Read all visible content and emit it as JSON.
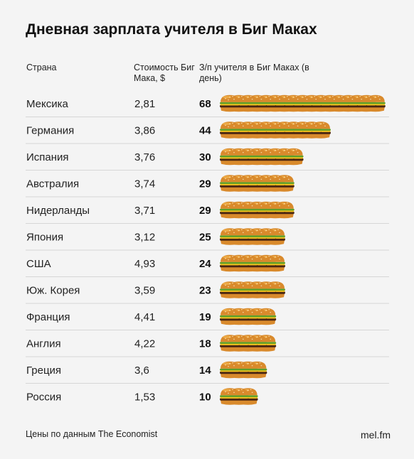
{
  "title": "Дневная зарплата учителя в Биг Маках",
  "headers": {
    "country": "Страна",
    "cost": "Стоимость Биг Мака, $",
    "salary": "З/п учителя в Биг Маках (в день)"
  },
  "footer": {
    "source": "Цены по данным The Economist",
    "brand": "mel.fm"
  },
  "chart_data": {
    "type": "table",
    "columns": [
      "Страна",
      "Стоимость Биг Мака, $",
      "З/п учителя в Биг Маках (в день)"
    ],
    "rows": [
      {
        "country": "Мексика",
        "price": "2,81",
        "bigmacs": 68
      },
      {
        "country": "Германия",
        "price": "3,86",
        "bigmacs": 44
      },
      {
        "country": "Испания",
        "price": "3,76",
        "bigmacs": 30
      },
      {
        "country": "Австралия",
        "price": "3,74",
        "bigmacs": 29
      },
      {
        "country": "Нидерланды",
        "price": "3,71",
        "bigmacs": 29
      },
      {
        "country": "Япония",
        "price": "3,12",
        "bigmacs": 25
      },
      {
        "country": "США",
        "price": "4,93",
        "bigmacs": 24
      },
      {
        "country": "Юж. Корея",
        "price": "3,59",
        "bigmacs": 23
      },
      {
        "country": "Франция",
        "price": "4,41",
        "bigmacs": 19
      },
      {
        "country": "Англия",
        "price": "4,22",
        "bigmacs": 18
      },
      {
        "country": "Греция",
        "price": "3,6",
        "bigmacs": 14
      },
      {
        "country": "Россия",
        "price": "1,53",
        "bigmacs": 10
      }
    ],
    "icon": "burger-icon",
    "colors": {
      "bun": "#d98a2c",
      "bun_light": "#f0b24e",
      "patty": "#4a2612",
      "lettuce": "#5fa02b",
      "cheese": "#f2c21d",
      "separator": "#d6d6d6"
    }
  }
}
